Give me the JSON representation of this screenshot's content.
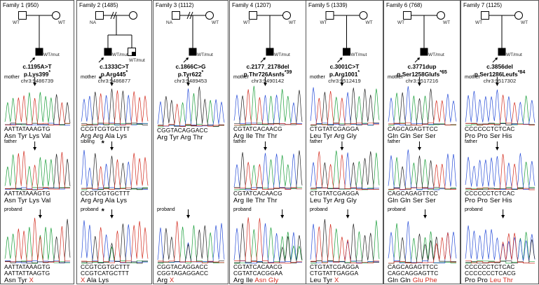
{
  "families": [
    {
      "id": "f1",
      "title": "Family 1 (950)",
      "pedigree": {
        "father": "WT",
        "mother": "WT",
        "proband": "WT/mut"
      },
      "variant": {
        "cdna": "c.1195A>T",
        "protein": "p.Lys399",
        "star": "*",
        "chr": "chr3:9486739"
      },
      "traces": [
        {
          "label": "mother",
          "star": "",
          "seq1": "AATTATAAAGTG",
          "seq2": "",
          "aa": [
            "Asn",
            "Tyr",
            "Lys",
            "Val"
          ],
          "red": []
        },
        {
          "label": "father",
          "star": "",
          "seq1": "AATTATAAAGTG",
          "seq2": "",
          "aa": [
            "Asn",
            "Tyr",
            "Lys",
            "Val"
          ],
          "red": []
        },
        {
          "label": "proband",
          "star": "",
          "seq1": "AATTATAAAGTG",
          "seq2": "AATTATTAAGTG",
          "aa": [
            "Asn",
            "Tyr",
            "X"
          ],
          "red": [
            2
          ]
        }
      ]
    },
    {
      "id": "f2",
      "title": "Family 2 (1485)",
      "pedigree": {
        "father": "NA",
        "mother": "",
        "proband": "WT/mut",
        "sibling": "WT/mut"
      },
      "variant": {
        "cdna": "c.1333C>T",
        "protein": "p.Arg445",
        "star": "*",
        "chr": "chr3:9486877"
      },
      "traces": [
        {
          "label": "mother",
          "star": "*",
          "seq1": "CCGTCGTGCTTT",
          "seq2": "",
          "aa": [
            "Arg",
            "Arg",
            "Ala",
            "Lys"
          ],
          "red": []
        },
        {
          "label": "sibling",
          "star": "*",
          "seq1": "CCGTCGTGCTTT",
          "seq2": "",
          "aa": [
            "Arg",
            "Arg",
            "Ala",
            "Lys"
          ],
          "red": []
        },
        {
          "label": "proband",
          "star": "*",
          "seq1": "CCGTCGTGCTTT",
          "seq2": "CCGTCATGCTTT",
          "aa": [
            "X",
            "Ala",
            "Lys"
          ],
          "red": [
            0
          ]
        }
      ]
    },
    {
      "id": "f3",
      "title": "Family 3 (1112)",
      "pedigree": {
        "father": "NA",
        "mother": "WT",
        "proband": "WT/mut"
      },
      "variant": {
        "cdna": "c.1866C>G",
        "protein": "p.Tyr622",
        "star": "*",
        "chr": "chr3:9489453"
      },
      "traces": [
        {
          "label": "",
          "star": "",
          "seq1": "CGGTACAGGACC",
          "seq2": "",
          "aa": [
            "Arg",
            "Tyr",
            "Arg",
            "Thr"
          ],
          "red": []
        },
        {
          "label": "proband",
          "star": "",
          "seq1": "CGGTACAGGACC",
          "seq2": "CGGTAGAGGACC",
          "aa": [
            "Arg",
            "X"
          ],
          "red": [
            1
          ]
        }
      ]
    },
    {
      "id": "f4",
      "title": "Family 4 (1207)",
      "pedigree": {
        "father": "WT",
        "mother": "WT",
        "proband": "WT/mut"
      },
      "variant": {
        "cdna": "c.2177_2178del",
        "protein": "p.Thr726Asnfs",
        "star": "*39",
        "chr": "chr3:9490142"
      },
      "traces": [
        {
          "label": "mother",
          "star": "",
          "seq1": "CGTATCACAACG",
          "seq2": "",
          "aa": [
            "Arg",
            "Ile",
            "Thr",
            "Thr"
          ],
          "red": []
        },
        {
          "label": "father",
          "star": "",
          "seq1": "CGTATCACAACG",
          "seq2": "",
          "aa": [
            "Arg",
            "Ile",
            "Thr",
            "Thr"
          ],
          "red": []
        },
        {
          "label": "proband",
          "star": "",
          "seq1": "CGTATCACAACG",
          "seq2": "CGTATCACGGAA",
          "aa": [
            "Arg",
            "Ile",
            "Asn",
            "Gly"
          ],
          "red": [
            2,
            3
          ]
        }
      ]
    },
    {
      "id": "f5",
      "title": "Family 5 (1339)",
      "pedigree": {
        "father": "WT",
        "mother": "WT",
        "proband": "WT/mut"
      },
      "variant": {
        "cdna": "c.3001C>T",
        "protein": "p.Arg1001",
        "star": "*",
        "chr": "chr3:9512419"
      },
      "traces": [
        {
          "label": "mother",
          "star": "",
          "seq1": "CTGTATCGAGGA",
          "seq2": "",
          "aa": [
            "Leu",
            "Tyr",
            "Arg",
            "Gly"
          ],
          "red": []
        },
        {
          "label": "father",
          "star": "",
          "seq1": "CTGTATCGAGGA",
          "seq2": "",
          "aa": [
            "Leu",
            "Tyr",
            "Arg",
            "Gly"
          ],
          "red": []
        },
        {
          "label": "proband",
          "star": "",
          "seq1": "CTGTATCGAGGA",
          "seq2": "CTGTATTGAGGA",
          "aa": [
            "Leu",
            "Tyr",
            "X"
          ],
          "red": [
            2
          ]
        }
      ]
    },
    {
      "id": "f6",
      "title": "Family 6 (768)",
      "pedigree": {
        "father": "WT",
        "mother": "WT",
        "proband": "WT/mut"
      },
      "variant": {
        "cdna": "c.3771dup",
        "protein": "p.Ser1258Glufs",
        "star": "*65",
        "chr": "chr3:9517216"
      },
      "traces": [
        {
          "label": "mother",
          "star": "",
          "seq1": "CAGCAGAGTTCC",
          "seq2": "",
          "aa": [
            "Gln",
            "Gln",
            "Ser",
            "Ser"
          ],
          "red": []
        },
        {
          "label": "father",
          "star": "",
          "seq1": "CAGCAGAGTTCC",
          "seq2": "",
          "aa": [
            "Gln",
            "Gln",
            "Ser",
            "Ser"
          ],
          "red": []
        },
        {
          "label": "proband",
          "star": "",
          "seq1": "CAGCAGAGTTCC",
          "seq2": "CAGCAGGAGTTC",
          "aa": [
            "Gln",
            "Gln",
            "Glu",
            "Phe"
          ],
          "red": [
            2,
            3
          ]
        }
      ]
    },
    {
      "id": "f7",
      "title": "Family 7 (1125)",
      "pedigree": {
        "father": "WT",
        "mother": "WT",
        "proband": "WT/mut"
      },
      "variant": {
        "cdna": "c.3856del",
        "protein": "p.Ser1286Leufs",
        "star": "*84",
        "chr": "chr3:9517302"
      },
      "traces": [
        {
          "label": "mother",
          "star": "",
          "seq1": "CCCCCCTCTCAC",
          "seq2": "",
          "aa": [
            "Pro",
            "Pro",
            "Ser",
            "His"
          ],
          "red": []
        },
        {
          "label": "father",
          "star": "",
          "seq1": "CCCCCCTCTCAC",
          "seq2": "",
          "aa": [
            "Pro",
            "Pro",
            "Ser",
            "His"
          ],
          "red": []
        },
        {
          "label": "proband",
          "star": "",
          "seq1": "CCCCCCTCTCAC",
          "seq2": "CCCCCCCTCACG",
          "aa": [
            "Pro",
            "Pro",
            "Leu",
            "Thr"
          ],
          "red": [
            2,
            3
          ]
        }
      ]
    }
  ],
  "colors": {
    "A": "#1a9e3a",
    "C": "#2a4fd8",
    "G": "#222222",
    "T": "#d22c1f",
    "mutant_text": "#d62a1e"
  }
}
